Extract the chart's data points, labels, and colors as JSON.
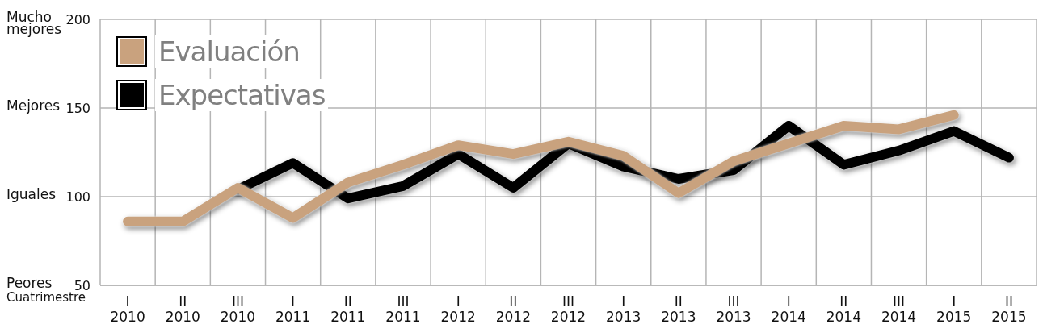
{
  "chart_data": {
    "type": "line",
    "categories": [
      "I\n2010",
      "II\n2010",
      "III\n2010",
      "I\n2011",
      "II\n2011",
      "III\n2011",
      "I\n2012",
      "II\n2012",
      "III\n2012",
      "I\n2013",
      "II\n2013",
      "III\n2013",
      "I\n2014",
      "II\n2014",
      "III\n2014",
      "I\n2015",
      "II\n2015"
    ],
    "series": [
      {
        "name": "Expectativas",
        "color": "#000000",
        "values": [
          null,
          null,
          104,
          119,
          99,
          106,
          124,
          105,
          130,
          117,
          110,
          115,
          140,
          118,
          126,
          137,
          122
        ]
      },
      {
        "name": "Evaluación",
        "color": "#c9a27e",
        "values": [
          86,
          86,
          105,
          88,
          108,
          118,
          129,
          124,
          131,
          123,
          102,
          120,
          130,
          140,
          138,
          146,
          null
        ]
      }
    ],
    "xlabel": "Cuatrimestre",
    "ylim": [
      50,
      200
    ],
    "yticks": [
      50,
      100,
      150,
      200
    ],
    "annotations": [
      "Peores",
      "Iguales",
      "Mejores",
      "Mucho\nmejores"
    ],
    "legend": "top left",
    "grid": true,
    "line_style": "solid",
    "marker": "none"
  }
}
